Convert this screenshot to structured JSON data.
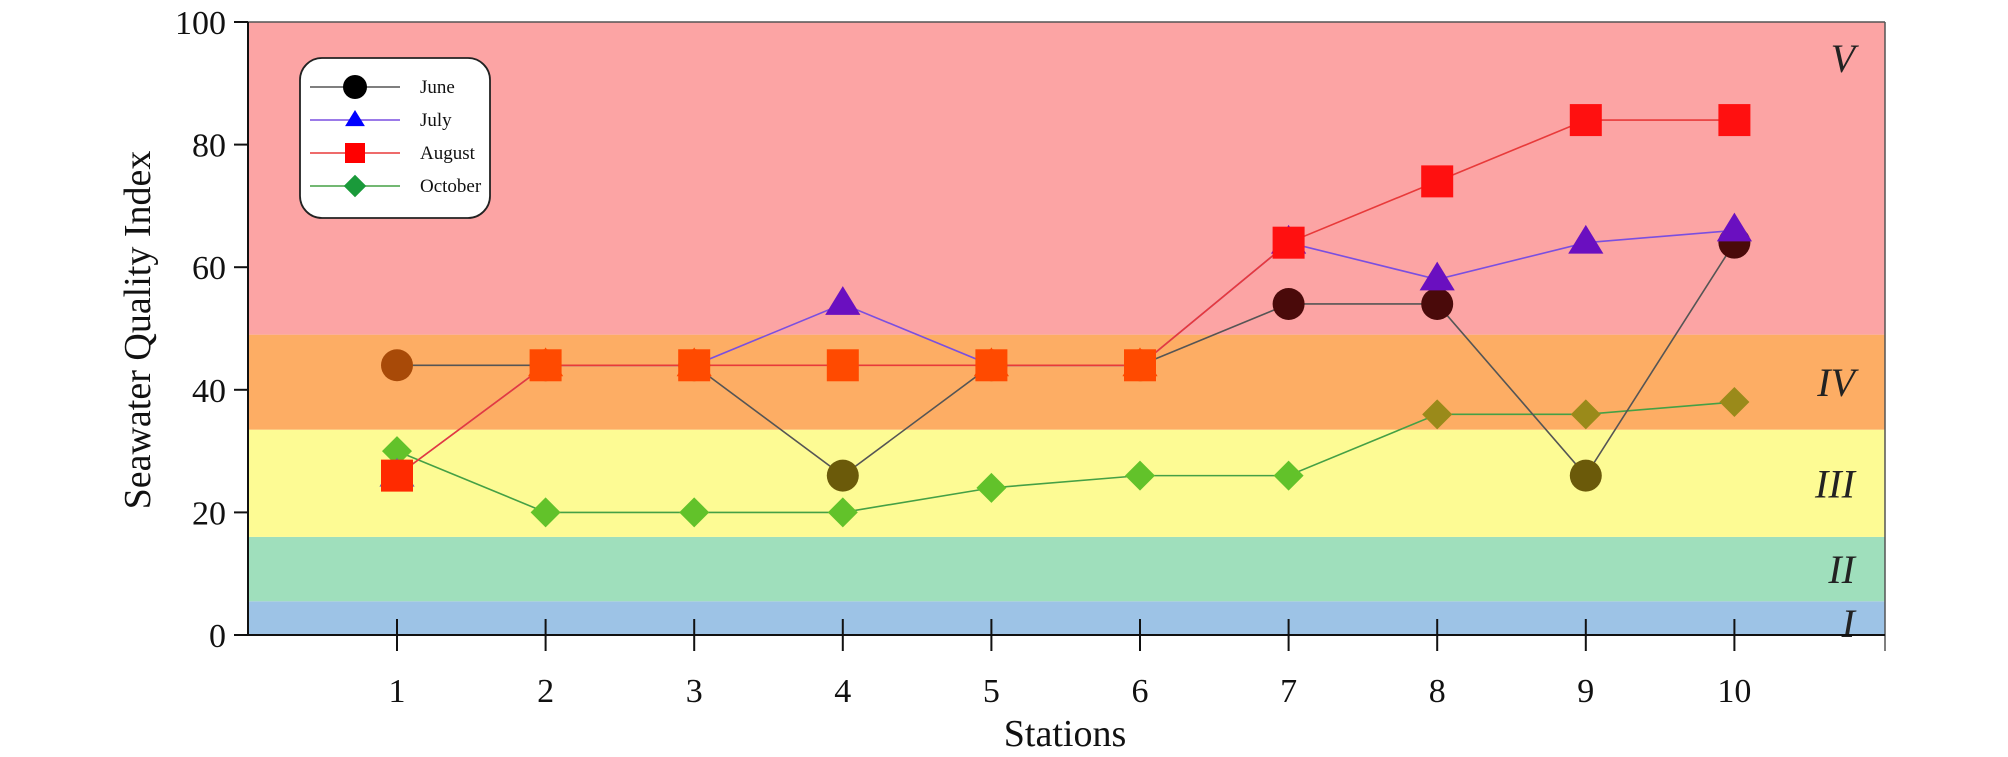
{
  "chart_data": {
    "type": "line",
    "title": "",
    "xlabel": "Stations",
    "ylabel": "Seawater Quality Index",
    "categories": [
      "1",
      "2",
      "3",
      "4",
      "5",
      "6",
      "7",
      "8",
      "9",
      "10"
    ],
    "x": [
      1,
      2,
      3,
      4,
      5,
      6,
      7,
      8,
      9,
      10
    ],
    "ylim": [
      0,
      100
    ],
    "yticks": [
      0,
      20,
      40,
      60,
      80,
      100
    ],
    "legend_position": "top-left",
    "grid": false,
    "zones": [
      {
        "label": "I",
        "from": 0,
        "to": 5.5,
        "color": "#9dc3e6"
      },
      {
        "label": "II",
        "from": 5.5,
        "to": 16,
        "color": "#9fdfbc"
      },
      {
        "label": "III",
        "from": 16,
        "to": 33.5,
        "color": "#fdfb94"
      },
      {
        "label": "IV",
        "from": 33.5,
        "to": 49,
        "color": "#fdad64"
      },
      {
        "label": "V",
        "from": 49,
        "to": 100,
        "color": "#fca4a4"
      }
    ],
    "series": [
      {
        "name": "June",
        "marker": "circle",
        "line_color": "#555555",
        "legend_color": "#000000",
        "values": [
          44,
          44,
          44,
          26,
          44,
          44,
          54,
          54,
          26,
          64
        ]
      },
      {
        "name": "July",
        "marker": "triangle",
        "line_color": "#7a4fe0",
        "legend_color": "#0000ff",
        "values": [
          26,
          44,
          44,
          54,
          44,
          44,
          64,
          58,
          64,
          66
        ]
      },
      {
        "name": "August",
        "marker": "square",
        "line_color": "#e83a3a",
        "legend_color": "#ff0000",
        "values": [
          26,
          44,
          44,
          44,
          44,
          44,
          64,
          74,
          84,
          84
        ]
      },
      {
        "name": "October",
        "marker": "diamond",
        "line_color": "#45a045",
        "legend_color": "#1a9a3a",
        "values": [
          30,
          20,
          20,
          20,
          24,
          26,
          26,
          36,
          36,
          38
        ]
      }
    ]
  }
}
